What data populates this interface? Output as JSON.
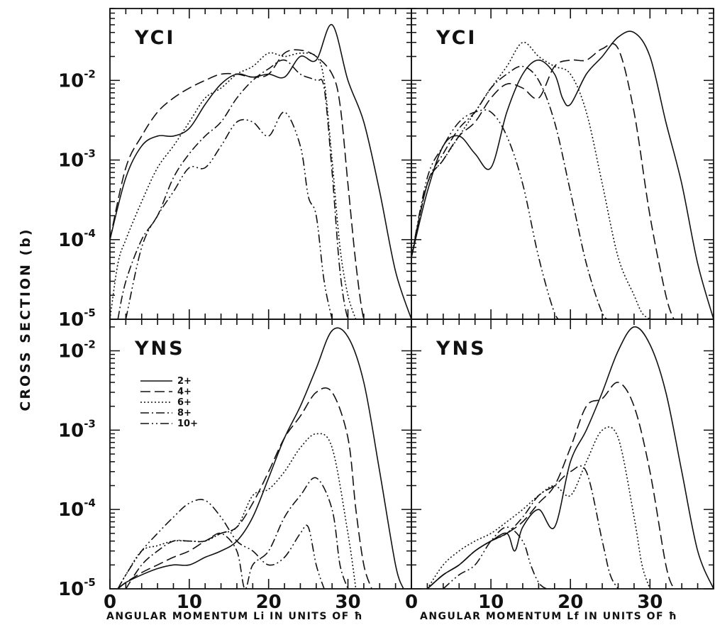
{
  "chart_data": [
    {
      "type": "line",
      "title": "YCI",
      "xlabel": "",
      "ylabel": "",
      "yscale": "log",
      "xlim": [
        0,
        38
      ],
      "ylim": [
        1e-05,
        0.08
      ],
      "series": [
        {
          "name": "2+",
          "x": [
            0,
            2,
            4,
            6,
            8,
            10,
            12,
            14,
            16,
            18,
            20,
            22,
            24,
            26,
            28,
            30,
            32,
            34,
            36,
            38
          ],
          "y": [
            0.0001,
            0.0006,
            0.0015,
            0.002,
            0.002,
            0.0025,
            0.005,
            0.009,
            0.012,
            0.011,
            0.012,
            0.011,
            0.02,
            0.018,
            0.05,
            0.01,
            0.003,
            0.0004,
            4e-05,
            1e-05
          ]
        },
        {
          "name": "4+",
          "x": [
            0,
            2,
            4,
            6,
            8,
            10,
            12,
            14,
            16,
            18,
            20,
            22,
            24,
            26,
            28,
            29,
            30,
            31,
            32,
            33
          ],
          "y": [
            0.0001,
            0.0008,
            0.002,
            0.004,
            0.006,
            0.008,
            0.01,
            0.012,
            0.012,
            0.011,
            0.012,
            0.022,
            0.024,
            0.02,
            0.012,
            0.005,
            0.0005,
            5e-05,
            1e-05,
            8e-06
          ]
        },
        {
          "name": "6+",
          "x": [
            0,
            1,
            2,
            4,
            6,
            8,
            10,
            12,
            14,
            16,
            18,
            20,
            22,
            24,
            26,
            27,
            28,
            29,
            30,
            31
          ],
          "y": [
            1e-05,
            5e-05,
            0.0001,
            0.0003,
            0.0008,
            0.0015,
            0.003,
            0.006,
            0.008,
            0.012,
            0.015,
            0.022,
            0.02,
            0.022,
            0.02,
            0.01,
            0.001,
            8e-05,
            2e-05,
            1e-05
          ]
        },
        {
          "name": "8+",
          "x": [
            1,
            2,
            4,
            6,
            8,
            10,
            12,
            14,
            16,
            18,
            20,
            22,
            24,
            26,
            27,
            28,
            29,
            30,
            31
          ],
          "y": [
            1e-05,
            3e-05,
            0.0001,
            0.0002,
            0.0006,
            0.0012,
            0.002,
            0.003,
            0.006,
            0.01,
            0.014,
            0.018,
            0.012,
            0.01,
            0.008,
            0.0007,
            4e-05,
            1e-05,
            8e-06
          ]
        },
        {
          "name": "10+",
          "x": [
            2,
            4,
            6,
            8,
            10,
            12,
            14,
            16,
            18,
            20,
            22,
            24,
            25,
            26,
            27,
            28
          ],
          "y": [
            1e-05,
            8e-05,
            0.0002,
            0.0004,
            0.0008,
            0.0008,
            0.0015,
            0.003,
            0.003,
            0.002,
            0.004,
            0.0015,
            0.00035,
            0.0002,
            3e-05,
            1e-05
          ]
        }
      ]
    },
    {
      "type": "line",
      "title": "YCI",
      "xlabel": "",
      "ylabel": "",
      "yscale": "log",
      "xlim": [
        0,
        38
      ],
      "ylim": [
        1e-05,
        0.08
      ],
      "series": [
        {
          "name": "2+",
          "x": [
            0,
            2,
            4,
            6,
            8,
            10,
            12,
            14,
            16,
            18,
            19,
            20,
            22,
            24,
            26,
            28,
            30,
            32,
            34,
            36,
            38
          ],
          "y": [
            6e-05,
            0.0004,
            0.0015,
            0.002,
            0.0012,
            0.0008,
            0.004,
            0.012,
            0.018,
            0.012,
            0.006,
            0.005,
            0.012,
            0.02,
            0.035,
            0.04,
            0.02,
            0.003,
            0.0005,
            5e-05,
            1e-05
          ]
        },
        {
          "name": "4+",
          "x": [
            0,
            2,
            4,
            6,
            8,
            10,
            12,
            14,
            16,
            18,
            20,
            22,
            24,
            26,
            28,
            30,
            32,
            33
          ],
          "y": [
            6e-05,
            0.0005,
            0.001,
            0.002,
            0.003,
            0.006,
            0.009,
            0.008,
            0.006,
            0.015,
            0.018,
            0.018,
            0.025,
            0.025,
            0.004,
            0.0002,
            2e-05,
            1e-05
          ]
        },
        {
          "name": "6+",
          "x": [
            0,
            2,
            4,
            6,
            8,
            10,
            12,
            14,
            16,
            18,
            20,
            22,
            24,
            26,
            28,
            29,
            30
          ],
          "y": [
            6e-05,
            0.0005,
            0.001,
            0.002,
            0.004,
            0.008,
            0.015,
            0.03,
            0.02,
            0.015,
            0.012,
            0.004,
            0.0005,
            6e-05,
            2e-05,
            1.2e-05,
            1e-05
          ]
        },
        {
          "name": "8+",
          "x": [
            0,
            2,
            4,
            6,
            8,
            10,
            12,
            14,
            16,
            18,
            20,
            22,
            24,
            25
          ],
          "y": [
            6e-05,
            0.0005,
            0.0012,
            0.0025,
            0.004,
            0.008,
            0.012,
            0.015,
            0.01,
            0.003,
            0.0004,
            5e-05,
            1.2e-05,
            1e-05
          ]
        },
        {
          "name": "10+",
          "x": [
            0,
            2,
            4,
            6,
            8,
            10,
            12,
            14,
            16,
            18,
            19
          ],
          "y": [
            6e-05,
            0.0006,
            0.0015,
            0.003,
            0.004,
            0.004,
            0.002,
            0.0005,
            6e-05,
            1.2e-05,
            1e-05
          ]
        }
      ]
    },
    {
      "type": "line",
      "title": "YNS",
      "xlabel": "ANGULAR MOMENTUM Li IN UNITS OF ħ",
      "ylabel": "",
      "yscale": "log",
      "xlim": [
        0,
        38
      ],
      "ylim": [
        1e-05,
        0.025
      ],
      "series": [
        {
          "name": "2+",
          "x": [
            1,
            2,
            4,
            6,
            8,
            10,
            12,
            14,
            16,
            18,
            20,
            22,
            24,
            26,
            28,
            30,
            32,
            34,
            36,
            37
          ],
          "y": [
            1e-05,
            1.2e-05,
            1.5e-05,
            1.8e-05,
            2e-05,
            2e-05,
            2.5e-05,
            3e-05,
            4e-05,
            8e-05,
            0.00025,
            0.0008,
            0.002,
            0.006,
            0.018,
            0.015,
            0.004,
            0.0003,
            2e-05,
            1e-05
          ]
        },
        {
          "name": "4+",
          "x": [
            1,
            2,
            4,
            6,
            8,
            10,
            12,
            14,
            16,
            18,
            20,
            22,
            24,
            26,
            28,
            30,
            31,
            32,
            33
          ],
          "y": [
            1e-05,
            1.2e-05,
            1.6e-05,
            2e-05,
            2.5e-05,
            3e-05,
            4e-05,
            5e-05,
            6e-05,
            0.00012,
            0.0003,
            0.0008,
            0.0015,
            0.003,
            0.003,
            0.0008,
            0.0001,
            2e-05,
            1e-05
          ]
        },
        {
          "name": "6+",
          "x": [
            1,
            2,
            4,
            6,
            8,
            10,
            12,
            14,
            16,
            18,
            20,
            22,
            24,
            26,
            28,
            30,
            31
          ],
          "y": [
            1e-05,
            1.5e-05,
            3e-05,
            3.5e-05,
            4e-05,
            4e-05,
            4e-05,
            5e-05,
            6e-05,
            0.00015,
            0.00018,
            0.0003,
            0.0006,
            0.0009,
            0.0006,
            5e-05,
            1e-05
          ]
        },
        {
          "name": "8+",
          "x": [
            2,
            4,
            6,
            8,
            10,
            12,
            14,
            16,
            17,
            18,
            20,
            22,
            24,
            26,
            28,
            29,
            30
          ],
          "y": [
            1e-05,
            2e-05,
            3e-05,
            4e-05,
            4e-05,
            4e-05,
            5e-05,
            3e-05,
            1e-05,
            2e-05,
            3e-05,
            8e-05,
            0.00015,
            0.00025,
            0.0001,
            2e-05,
            1e-05
          ]
        },
        {
          "name": "10+",
          "x": [
            1,
            2,
            4,
            6,
            8,
            10,
            12,
            14,
            16,
            18,
            20,
            22,
            24,
            25,
            26,
            27
          ],
          "y": [
            1e-05,
            1.5e-05,
            3e-05,
            5e-05,
            8e-05,
            0.00012,
            0.00013,
            8e-05,
            4e-05,
            3e-05,
            2e-05,
            2.5e-05,
            5e-05,
            6e-05,
            2e-05,
            1e-05
          ]
        }
      ]
    },
    {
      "type": "line",
      "title": "YNS",
      "xlabel": "ANGULAR MOMENTUM Lf IN UNITS OF ħ",
      "ylabel": "",
      "yscale": "log",
      "xlim": [
        0,
        38
      ],
      "ylim": [
        1e-05,
        0.025
      ],
      "series": [
        {
          "name": "2+",
          "x": [
            2,
            4,
            6,
            8,
            10,
            12,
            13,
            14,
            16,
            18,
            20,
            22,
            24,
            26,
            28,
            30,
            32,
            34,
            36,
            38
          ],
          "y": [
            1e-05,
            1.5e-05,
            2e-05,
            3e-05,
            4e-05,
            5e-05,
            3e-05,
            6e-05,
            0.0001,
            6e-05,
            0.0004,
            0.001,
            0.003,
            0.01,
            0.02,
            0.012,
            0.003,
            0.0003,
            3e-05,
            1e-05
          ]
        },
        {
          "name": "4+",
          "x": [
            2,
            4,
            6,
            8,
            10,
            12,
            14,
            16,
            18,
            20,
            22,
            24,
            26,
            28,
            30,
            32,
            33
          ],
          "y": [
            1e-05,
            1.5e-05,
            2e-05,
            3e-05,
            4e-05,
            5e-05,
            7e-05,
            0.00012,
            0.0002,
            0.0006,
            0.002,
            0.0025,
            0.004,
            0.002,
            0.0003,
            2e-05,
            1e-05
          ]
        },
        {
          "name": "6+",
          "x": [
            2,
            4,
            6,
            8,
            10,
            12,
            14,
            16,
            18,
            20,
            22,
            24,
            26,
            28,
            29,
            30
          ],
          "y": [
            1e-05,
            2e-05,
            3e-05,
            4e-05,
            5e-05,
            7e-05,
            0.0001,
            0.00015,
            0.0002,
            0.00015,
            0.0004,
            0.001,
            0.0008,
            8e-05,
            2e-05,
            1e-05
          ]
        },
        {
          "name": "8+",
          "x": [
            2,
            4,
            6,
            8,
            10,
            12,
            14,
            16,
            18,
            20,
            22,
            24,
            25,
            26
          ],
          "y": [
            1e-05,
            1.5e-05,
            2e-05,
            3e-05,
            4e-05,
            5e-05,
            8e-05,
            0.00015,
            0.0002,
            0.0003,
            0.0003,
            4e-05,
            1.5e-05,
            1e-05
          ]
        },
        {
          "name": "10+",
          "x": [
            4,
            6,
            8,
            10,
            12,
            14,
            15,
            16,
            17,
            18,
            19
          ],
          "y": [
            1e-05,
            1.5e-05,
            2e-05,
            4e-05,
            6e-05,
            4e-05,
            2e-05,
            1.2e-05,
            1e-05,
            1e-05,
            1e-05
          ]
        }
      ]
    }
  ],
  "y_axis_title": "CROSS SECTION (b)",
  "x_axis_titles": {
    "left": "ANGULAR MOMENTUM Li IN UNITS OF ħ",
    "right": "ANGULAR MOMENTUM Lf IN UNITS OF ħ"
  },
  "y_tick_labels": {
    "top": [
      {
        "base": "10",
        "exp": "-2",
        "value": 0.01
      },
      {
        "base": "10",
        "exp": "-3",
        "value": 0.001
      },
      {
        "base": "10",
        "exp": "-4",
        "value": 0.0001
      },
      {
        "base": "10",
        "exp": "-5",
        "value": 1e-05
      }
    ],
    "bottom": [
      {
        "base": "10",
        "exp": "-2",
        "value": 0.01
      },
      {
        "base": "10",
        "exp": "-3",
        "value": 0.001
      },
      {
        "base": "10",
        "exp": "-4",
        "value": 0.0001
      },
      {
        "base": "10",
        "exp": "-5",
        "value": 1e-05
      }
    ]
  },
  "x_tick_labels": {
    "left": [
      {
        "text": "0",
        "value": 0
      },
      {
        "text": "10",
        "value": 10
      },
      {
        "text": "20",
        "value": 20
      },
      {
        "text": "30",
        "value": 30
      }
    ],
    "right": [
      {
        "text": "0",
        "value": 0
      },
      {
        "text": "10",
        "value": 10
      },
      {
        "text": "20",
        "value": 20
      },
      {
        "text": "30",
        "value": 30
      }
    ]
  },
  "legend": {
    "panel": 2,
    "entries": [
      {
        "label": "2+",
        "dash": "solid"
      },
      {
        "label": "4+",
        "dash": "dashed"
      },
      {
        "label": "6+",
        "dash": "dotted"
      },
      {
        "label": "8+",
        "dash": "dash-dot"
      },
      {
        "label": "10+",
        "dash": "dash-dot-dot"
      }
    ]
  },
  "line_color": "#111111"
}
